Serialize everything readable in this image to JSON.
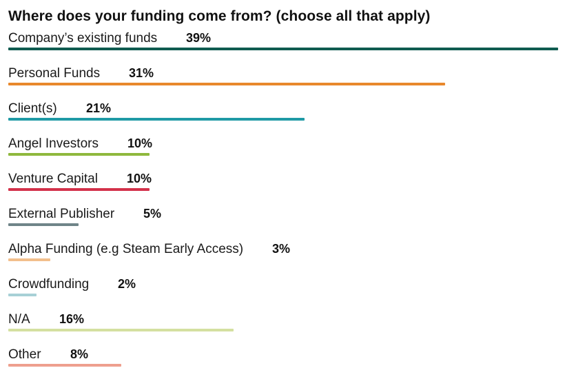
{
  "title": "Where does your funding come from? (choose all that apply)",
  "chart_data": {
    "type": "bar",
    "orientation": "horizontal",
    "title": "Where does your funding come from? (choose all that apply)",
    "xlabel": "",
    "ylabel": "",
    "xlim": [
      0,
      39
    ],
    "grid": false,
    "categories": [
      "Company’s existing funds",
      "Personal Funds",
      "Client(s)",
      "Angel Investors",
      "Venture Capital",
      "External Publisher",
      "Alpha Funding (e.g Steam Early Access)",
      "Crowdfunding",
      "N/A",
      "Other"
    ],
    "values": [
      39,
      31,
      21,
      10,
      10,
      5,
      3,
      2,
      16,
      8
    ],
    "value_labels": [
      "39%",
      "31%",
      "21%",
      "10%",
      "10%",
      "5%",
      "3%",
      "2%",
      "16%",
      "8%"
    ],
    "colors": [
      "#0f5b50",
      "#e8882c",
      "#1f9aa5",
      "#8fb83d",
      "#d3314a",
      "#6f8488",
      "#f2bf8c",
      "#a7d0d6",
      "#d4e0a0",
      "#ee9f8e"
    ]
  }
}
